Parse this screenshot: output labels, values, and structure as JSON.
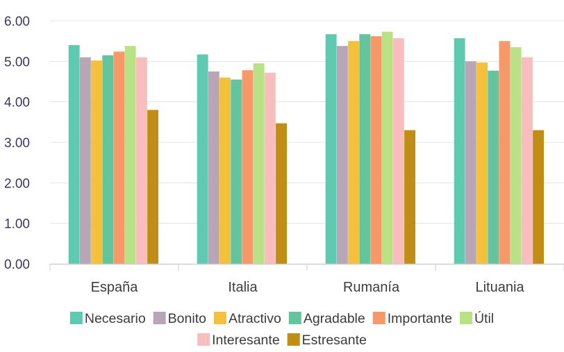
{
  "chart_data": {
    "type": "bar",
    "categories": [
      "España",
      "Italia",
      "Rumanía",
      "Lituania"
    ],
    "ylim": [
      0,
      6
    ],
    "yticks": [
      "0.00",
      "1.00",
      "2.00",
      "3.00",
      "4.00",
      "5.00",
      "6.00"
    ],
    "grid": true,
    "legend_position": "bottom",
    "series": [
      {
        "name": "Necesario",
        "color": "#5ecbb0",
        "values": [
          5.4,
          5.17,
          5.67,
          5.57
        ]
      },
      {
        "name": "Bonito",
        "color": "#b8a6b6",
        "values": [
          5.1,
          4.75,
          5.38,
          5.0
        ]
      },
      {
        "name": "Atractivo",
        "color": "#f4c13c",
        "values": [
          5.02,
          4.6,
          5.5,
          4.97
        ]
      },
      {
        "name": "Agradable",
        "color": "#64c49e",
        "values": [
          5.15,
          4.55,
          5.67,
          4.77
        ]
      },
      {
        "name": "Importante",
        "color": "#f79868",
        "values": [
          5.24,
          4.78,
          5.62,
          5.5
        ]
      },
      {
        "name": "Útil",
        "color": "#b9e287",
        "values": [
          5.38,
          4.95,
          5.73,
          5.35
        ]
      },
      {
        "name": "Interesante",
        "color": "#f8bdbd",
        "values": [
          5.1,
          4.72,
          5.57,
          5.1
        ]
      },
      {
        "name": "Estresante",
        "color": "#c08e14",
        "values": [
          3.8,
          3.47,
          3.3,
          3.3
        ]
      }
    ]
  }
}
